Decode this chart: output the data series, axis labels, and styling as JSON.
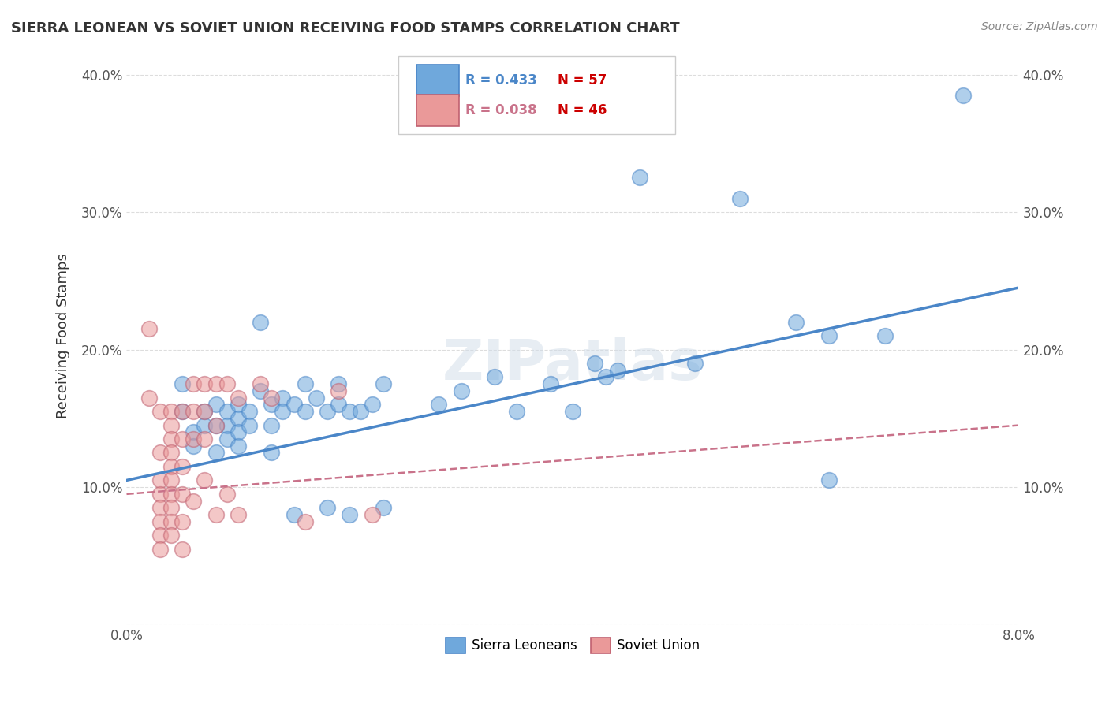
{
  "title": "SIERRA LEONEAN VS SOVIET UNION RECEIVING FOOD STAMPS CORRELATION CHART",
  "source": "Source: ZipAtlas.com",
  "ylabel": "Receiving Food Stamps",
  "yticks": [
    "",
    "10.0%",
    "20.0%",
    "30.0%",
    "40.0%"
  ],
  "ytick_vals": [
    0,
    0.1,
    0.2,
    0.3,
    0.4
  ],
  "xlim": [
    0.0,
    0.08
  ],
  "ylim": [
    0.0,
    0.42
  ],
  "legend_blue_r": "R = 0.433",
  "legend_blue_n": "N = 57",
  "legend_pink_r": "R = 0.038",
  "legend_pink_n": "N = 46",
  "blue_color": "#6fa8dc",
  "pink_color": "#ea9999",
  "trendline_blue": "#4a86c8",
  "trendline_pink": "#c9728a",
  "pink_edge_color": "#c06070",
  "blue_scatter": [
    [
      0.005,
      0.175
    ],
    [
      0.005,
      0.155
    ],
    [
      0.006,
      0.14
    ],
    [
      0.006,
      0.13
    ],
    [
      0.007,
      0.155
    ],
    [
      0.007,
      0.145
    ],
    [
      0.008,
      0.16
    ],
    [
      0.008,
      0.145
    ],
    [
      0.008,
      0.125
    ],
    [
      0.009,
      0.155
    ],
    [
      0.009,
      0.145
    ],
    [
      0.009,
      0.135
    ],
    [
      0.01,
      0.16
    ],
    [
      0.01,
      0.15
    ],
    [
      0.01,
      0.14
    ],
    [
      0.01,
      0.13
    ],
    [
      0.011,
      0.155
    ],
    [
      0.011,
      0.145
    ],
    [
      0.012,
      0.22
    ],
    [
      0.012,
      0.17
    ],
    [
      0.013,
      0.16
    ],
    [
      0.013,
      0.145
    ],
    [
      0.013,
      0.125
    ],
    [
      0.014,
      0.165
    ],
    [
      0.014,
      0.155
    ],
    [
      0.015,
      0.16
    ],
    [
      0.015,
      0.08
    ],
    [
      0.016,
      0.175
    ],
    [
      0.016,
      0.155
    ],
    [
      0.017,
      0.165
    ],
    [
      0.018,
      0.155
    ],
    [
      0.018,
      0.085
    ],
    [
      0.019,
      0.175
    ],
    [
      0.019,
      0.16
    ],
    [
      0.02,
      0.155
    ],
    [
      0.02,
      0.08
    ],
    [
      0.021,
      0.155
    ],
    [
      0.022,
      0.16
    ],
    [
      0.023,
      0.175
    ],
    [
      0.023,
      0.085
    ],
    [
      0.028,
      0.16
    ],
    [
      0.03,
      0.17
    ],
    [
      0.033,
      0.18
    ],
    [
      0.035,
      0.155
    ],
    [
      0.038,
      0.175
    ],
    [
      0.04,
      0.155
    ],
    [
      0.042,
      0.19
    ],
    [
      0.043,
      0.18
    ],
    [
      0.044,
      0.185
    ],
    [
      0.046,
      0.325
    ],
    [
      0.051,
      0.19
    ],
    [
      0.055,
      0.31
    ],
    [
      0.06,
      0.22
    ],
    [
      0.063,
      0.21
    ],
    [
      0.063,
      0.105
    ],
    [
      0.068,
      0.21
    ],
    [
      0.075,
      0.385
    ]
  ],
  "pink_scatter": [
    [
      0.002,
      0.215
    ],
    [
      0.002,
      0.165
    ],
    [
      0.003,
      0.155
    ],
    [
      0.003,
      0.125
    ],
    [
      0.003,
      0.105
    ],
    [
      0.003,
      0.095
    ],
    [
      0.003,
      0.085
    ],
    [
      0.003,
      0.075
    ],
    [
      0.003,
      0.065
    ],
    [
      0.003,
      0.055
    ],
    [
      0.004,
      0.155
    ],
    [
      0.004,
      0.145
    ],
    [
      0.004,
      0.135
    ],
    [
      0.004,
      0.125
    ],
    [
      0.004,
      0.115
    ],
    [
      0.004,
      0.105
    ],
    [
      0.004,
      0.095
    ],
    [
      0.004,
      0.085
    ],
    [
      0.004,
      0.075
    ],
    [
      0.004,
      0.065
    ],
    [
      0.005,
      0.155
    ],
    [
      0.005,
      0.135
    ],
    [
      0.005,
      0.115
    ],
    [
      0.005,
      0.095
    ],
    [
      0.005,
      0.075
    ],
    [
      0.005,
      0.055
    ],
    [
      0.006,
      0.175
    ],
    [
      0.006,
      0.155
    ],
    [
      0.006,
      0.135
    ],
    [
      0.006,
      0.09
    ],
    [
      0.007,
      0.175
    ],
    [
      0.007,
      0.155
    ],
    [
      0.007,
      0.135
    ],
    [
      0.007,
      0.105
    ],
    [
      0.008,
      0.175
    ],
    [
      0.008,
      0.145
    ],
    [
      0.008,
      0.08
    ],
    [
      0.009,
      0.175
    ],
    [
      0.009,
      0.095
    ],
    [
      0.01,
      0.165
    ],
    [
      0.01,
      0.08
    ],
    [
      0.012,
      0.175
    ],
    [
      0.013,
      0.165
    ],
    [
      0.016,
      0.075
    ],
    [
      0.019,
      0.17
    ],
    [
      0.022,
      0.08
    ]
  ],
  "blue_trendline": [
    [
      0.0,
      0.105
    ],
    [
      0.08,
      0.245
    ]
  ],
  "pink_trendline": [
    [
      0.0,
      0.095
    ],
    [
      0.08,
      0.145
    ]
  ],
  "watermark": "ZIPatlas",
  "background_color": "#ffffff",
  "grid_color": "#dddddd",
  "r_color_blue": "#4a86c8",
  "n_color": "#cc0000",
  "r_color_pink": "#c9728a"
}
